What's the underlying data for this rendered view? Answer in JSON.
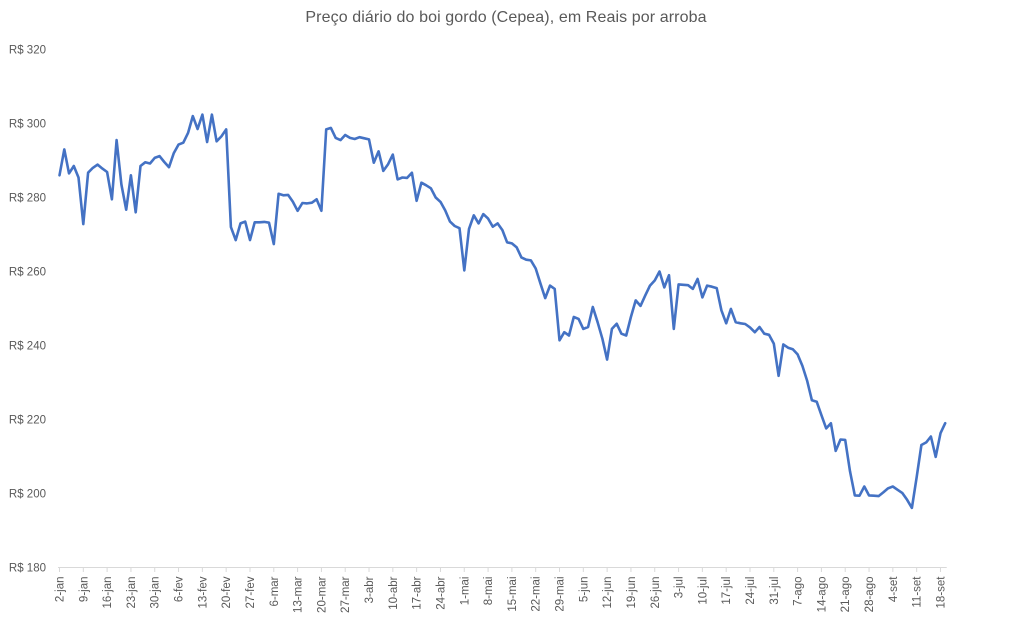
{
  "page": {
    "background": "#ffffff"
  },
  "chart_data": {
    "type": "line",
    "title": "Preço diário do boi gordo (Cepea), em Reais por arroba",
    "xlabel": "",
    "ylabel": "",
    "ylim": [
      180,
      320
    ],
    "grid": false,
    "legend": "none",
    "line_color": "#4472c4",
    "axis_color": "#d9d9d9",
    "text_color": "#595959",
    "y_ticks": [
      180,
      200,
      220,
      240,
      260,
      280,
      300,
      320
    ],
    "y_tick_labels": [
      "R$ 180",
      "R$ 200",
      "R$ 220",
      "R$ 240",
      "R$ 260",
      "R$ 280",
      "R$ 300",
      "R$ 320"
    ],
    "x_tick_every": 5,
    "x_tick_labels": [
      "2-jan",
      "9-jan",
      "16-jan",
      "23-jan",
      "30-jan",
      "6-fev",
      "13-fev",
      "20-fev",
      "27-fev",
      "6-mar",
      "13-mar",
      "20-mar",
      "27-mar",
      "3-abr",
      "10-abr",
      "17-abr",
      "24-abr",
      "1-mai",
      "8-mai",
      "15-mai",
      "22-mai",
      "29-mai",
      "5-jun",
      "12-jun",
      "19-jun",
      "26-jun",
      "3-jul",
      "10-jul",
      "17-jul",
      "24-jul",
      "31-jul",
      "7-ago",
      "14-ago",
      "21-ago",
      "28-ago",
      "4-set",
      "11-set",
      "18-set"
    ],
    "x": [
      "2-jan",
      "3-jan",
      "4-jan",
      "5-jan",
      "6-jan",
      "9-jan",
      "10-jan",
      "11-jan",
      "12-jan",
      "13-jan",
      "16-jan",
      "17-jan",
      "18-jan",
      "19-jan",
      "20-jan",
      "23-jan",
      "24-jan",
      "25-jan",
      "26-jan",
      "27-jan",
      "30-jan",
      "31-jan",
      "1-fev",
      "2-fev",
      "3-fev",
      "6-fev",
      "7-fev",
      "8-fev",
      "9-fev",
      "10-fev",
      "13-fev",
      "14-fev",
      "15-fev",
      "16-fev",
      "17-fev",
      "20-fev",
      "21-fev",
      "22-fev",
      "23-fev",
      "24-fev",
      "27-fev",
      "28-fev",
      "1-mar",
      "2-mar",
      "3-mar",
      "6-mar",
      "7-mar",
      "8-mar",
      "9-mar",
      "10-mar",
      "13-mar",
      "14-mar",
      "15-mar",
      "16-mar",
      "17-mar",
      "20-mar",
      "21-mar",
      "22-mar",
      "23-mar",
      "24-mar",
      "27-mar",
      "28-mar",
      "29-mar",
      "30-mar",
      "31-mar",
      "3-abr",
      "4-abr",
      "5-abr",
      "6-abr",
      "7-abr",
      "10-abr",
      "11-abr",
      "12-abr",
      "13-abr",
      "14-abr",
      "17-abr",
      "18-abr",
      "19-abr",
      "20-abr",
      "21-abr",
      "24-abr",
      "25-abr",
      "26-abr",
      "27-abr",
      "28-abr",
      "1-mai",
      "2-mai",
      "3-mai",
      "4-mai",
      "5-mai",
      "8-mai",
      "9-mai",
      "10-mai",
      "11-mai",
      "12-mai",
      "15-mai",
      "16-mai",
      "17-mai",
      "18-mai",
      "19-mai",
      "22-mai",
      "23-mai",
      "24-mai",
      "25-mai",
      "26-mai",
      "29-mai",
      "30-mai",
      "31-mai",
      "1-jun",
      "2-jun",
      "5-jun",
      "6-jun",
      "7-jun",
      "8-jun",
      "9-jun",
      "12-jun",
      "13-jun",
      "14-jun",
      "15-jun",
      "16-jun",
      "19-jun",
      "20-jun",
      "21-jun",
      "22-jun",
      "23-jun",
      "26-jun",
      "27-jun",
      "28-jun",
      "29-jun",
      "30-jun",
      "3-jul",
      "4-jul",
      "5-jul",
      "6-jul",
      "7-jul",
      "10-jul",
      "11-jul",
      "12-jul",
      "13-jul",
      "14-jul",
      "17-jul",
      "18-jul",
      "19-jul",
      "20-jul",
      "21-jul",
      "24-jul",
      "25-jul",
      "26-jul",
      "27-jul",
      "28-jul",
      "31-jul",
      "1-ago",
      "2-ago",
      "3-ago",
      "4-ago",
      "7-ago",
      "8-ago",
      "9-ago",
      "10-ago",
      "11-ago",
      "14-ago",
      "15-ago",
      "16-ago",
      "17-ago",
      "18-ago",
      "21-ago",
      "22-ago",
      "23-ago",
      "24-ago",
      "25-ago",
      "28-ago",
      "29-ago",
      "30-ago",
      "31-ago",
      "1-set",
      "4-set",
      "5-set",
      "6-set",
      "7-set",
      "8-set",
      "11-set",
      "12-set",
      "13-set",
      "14-set",
      "15-set",
      "18-set",
      "19-set"
    ],
    "values": [
      286.0,
      293.0,
      286.5,
      288.5,
      285.4,
      272.8,
      286.7,
      288.0,
      288.9,
      287.8,
      286.9,
      279.5,
      295.5,
      283.5,
      276.7,
      286.0,
      276.0,
      288.5,
      289.5,
      289.2,
      290.7,
      291.2,
      289.6,
      288.2,
      292.0,
      294.3,
      294.8,
      297.5,
      302.0,
      298.5,
      302.4,
      295.0,
      302.4,
      295.2,
      296.5,
      298.4,
      272.0,
      268.5,
      273.0,
      273.5,
      268.5,
      273.3,
      273.3,
      273.4,
      273.2,
      267.4,
      281.0,
      280.6,
      280.7,
      278.9,
      276.4,
      278.5,
      278.4,
      278.6,
      279.5,
      276.4,
      298.4,
      298.8,
      296.1,
      295.5,
      296.9,
      296.1,
      295.8,
      296.3,
      296.0,
      295.7,
      289.4,
      292.5,
      287.2,
      289.0,
      291.6,
      284.9,
      285.4,
      285.3,
      286.7,
      279.1,
      284.0,
      283.3,
      282.5,
      280.0,
      278.8,
      276.5,
      273.5,
      272.3,
      271.7,
      260.3,
      271.5,
      275.2,
      273.0,
      275.5,
      274.3,
      272.1,
      273.0,
      271.2,
      267.9,
      267.6,
      266.5,
      263.8,
      263.2,
      263.0,
      260.8,
      256.7,
      252.8,
      256.2,
      255.3,
      241.4,
      243.6,
      242.7,
      247.7,
      247.2,
      244.5,
      245.0,
      250.4,
      246.3,
      241.8,
      236.2,
      244.5,
      245.9,
      243.2,
      242.7,
      247.7,
      252.2,
      250.7,
      253.5,
      256.2,
      257.6,
      260.0,
      255.7,
      259.0,
      244.5,
      256.5,
      256.4,
      256.3,
      255.3,
      258.0,
      253.0,
      256.2,
      255.9,
      255.5,
      249.5,
      246.0,
      249.9,
      246.3,
      246.0,
      245.8,
      244.9,
      243.6,
      245.0,
      243.2,
      242.9,
      240.5,
      231.8,
      240.3,
      239.4,
      239.0,
      237.6,
      234.5,
      230.5,
      225.2,
      224.8,
      221.2,
      217.6,
      219.0,
      211.5,
      214.6,
      214.5,
      206.0,
      199.5,
      199.4,
      201.9,
      199.5,
      199.4,
      199.3,
      200.3,
      201.4,
      201.9,
      201.0,
      200.1,
      198.3,
      196.1,
      204.5,
      213.1,
      213.8,
      215.4,
      209.9,
      216.3,
      219.0
    ]
  }
}
